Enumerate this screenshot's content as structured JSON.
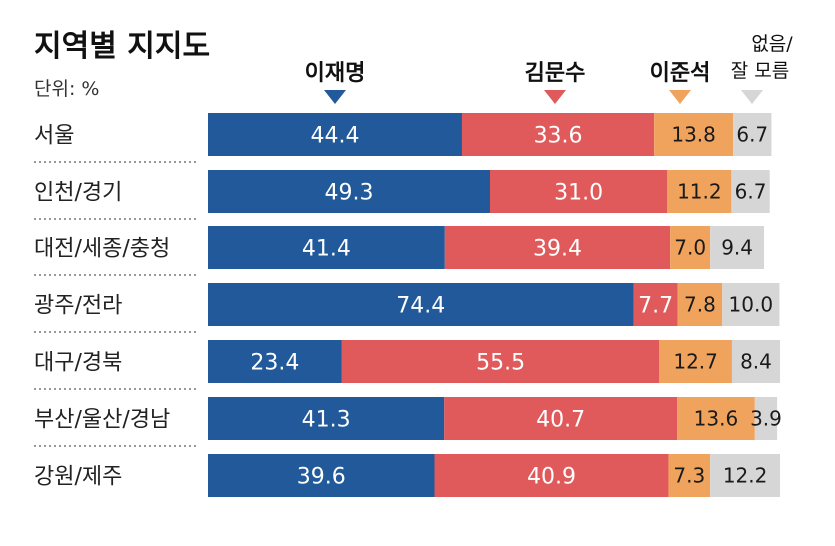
{
  "title": "지역별 지지도",
  "unit_label": "단위: %",
  "colors": {
    "이재명": "#21599a",
    "김문수": "#e05a5b",
    "이준석": "#f0a35c",
    "없음/잘 모름": "#d6d6d6"
  },
  "chart_data": {
    "type": "bar",
    "stacked": true,
    "orientation": "horizontal",
    "title": "지역별 지지도",
    "unit": "%",
    "legend_placement": "top",
    "categories": [
      "서울",
      "인천/경기",
      "대전/세종/충청",
      "광주/전라",
      "대구/경북",
      "부산/울산/경남",
      "강원/제주"
    ],
    "series": [
      {
        "name": "이재명",
        "values": [
          44.4,
          49.3,
          41.4,
          74.4,
          23.4,
          41.3,
          39.6
        ]
      },
      {
        "name": "김문수",
        "values": [
          33.6,
          31.0,
          39.4,
          7.7,
          55.5,
          40.7,
          40.9
        ]
      },
      {
        "name": "이준석",
        "values": [
          13.8,
          11.2,
          7.0,
          7.8,
          12.7,
          13.6,
          7.3
        ]
      },
      {
        "name": "없음/잘 모름",
        "values": [
          6.7,
          6.7,
          9.4,
          10.0,
          8.4,
          3.9,
          12.2
        ]
      }
    ],
    "value_labels": [
      [
        "44.4",
        "33.6",
        "13.8",
        "6.7"
      ],
      [
        "49.3",
        "31.0",
        "11.2",
        "6.7"
      ],
      [
        "41.4",
        "39.4",
        "7.0",
        "9.4"
      ],
      [
        "74.4",
        "7.7",
        "7.8",
        "10.0"
      ],
      [
        "23.4",
        "55.5",
        "12.7",
        "8.4"
      ],
      [
        "41.3",
        "40.7",
        "13.6",
        "3.9"
      ],
      [
        "39.6",
        "40.9",
        "7.3",
        "12.2"
      ]
    ]
  }
}
